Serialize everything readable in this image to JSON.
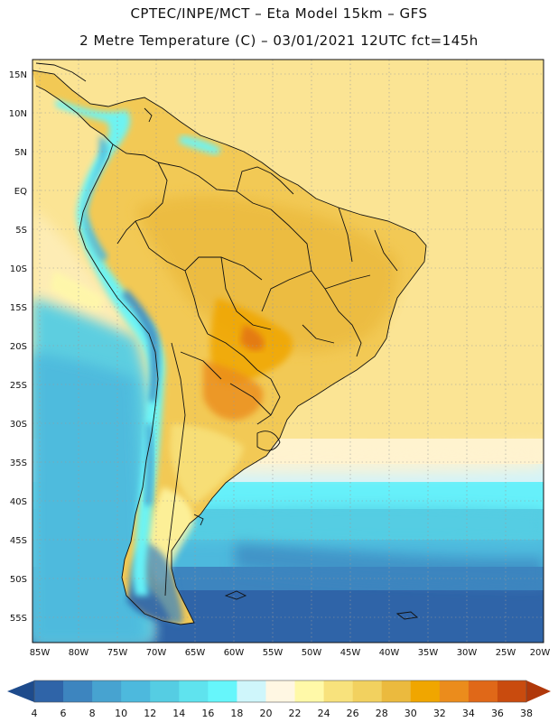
{
  "header": {
    "title": "CPTEC/INPE/MCT –  Eta Model 15km – GFS",
    "subtitle": "2 Metre Temperature (C) – 03/01/2021 12UTC fct=145h"
  },
  "map": {
    "lat_labels": [
      "15N",
      "10N",
      "5N",
      "EQ",
      "5S",
      "10S",
      "15S",
      "20S",
      "25S",
      "30S",
      "35S",
      "40S",
      "45S",
      "50S",
      "55S"
    ],
    "lon_labels": [
      "85W",
      "80W",
      "75W",
      "70W",
      "65W",
      "60W",
      "55W",
      "50W",
      "45W",
      "40W",
      "35W",
      "30W",
      "25W",
      "20W"
    ],
    "lon_range": [
      -85,
      -20
    ],
    "lat_range": [
      -58,
      16
    ]
  },
  "colorbar": {
    "levels": [
      "4",
      "6",
      "8",
      "10",
      "12",
      "14",
      "16",
      "18",
      "20",
      "22",
      "24",
      "26",
      "28",
      "30",
      "32",
      "34",
      "36",
      "38"
    ],
    "colors": [
      "#2f64a8",
      "#3d85bf",
      "#47a3d0",
      "#4db9dd",
      "#55cde3",
      "#5fe3ee",
      "#66f6fb",
      "#cff6fb",
      "#fff7e3",
      "#fff9a8",
      "#f8e27c",
      "#f2d15f",
      "#ebba3e",
      "#f0a600",
      "#eb8c1c",
      "#e06818",
      "#c94b0e"
    ],
    "low_arrow_color": "#1e4b8c",
    "high_arrow_color": "#b0380a"
  }
}
